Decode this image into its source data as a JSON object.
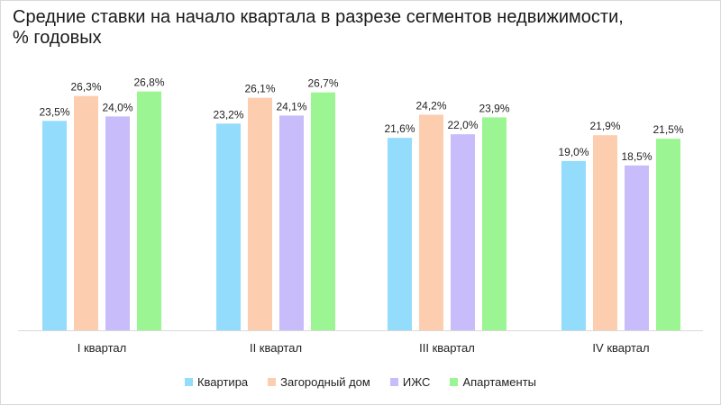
{
  "chart_data": {
    "type": "bar",
    "title": "Средние ставки на начало квартала в разрезе сегментов недвижимости,\n% годовых",
    "categories": [
      "I квартал",
      "II квартал",
      "III квартал",
      "IV квартал"
    ],
    "series": [
      {
        "name": "Квартира",
        "color": "#93dcfb",
        "values": [
          23.5,
          23.2,
          21.6,
          19.0
        ],
        "labels": [
          "23,5%",
          "23,2%",
          "21,6%",
          "19,0%"
        ]
      },
      {
        "name": "Загородный дом",
        "color": "#fdcdb0",
        "values": [
          26.3,
          26.1,
          24.2,
          21.9
        ],
        "labels": [
          "26,3%",
          "26,1%",
          "24,2%",
          "21,9%"
        ]
      },
      {
        "name": "ИЖС",
        "color": "#c8bcfa",
        "values": [
          24.0,
          24.1,
          22.0,
          18.5
        ],
        "labels": [
          "24,0%",
          "24,1%",
          "22,0%",
          "18,5%"
        ]
      },
      {
        "name": "Апартаменты",
        "color": "#9af592",
        "values": [
          26.8,
          26.7,
          23.9,
          21.5
        ],
        "labels": [
          "26,8%",
          "26,7%",
          "23,9%",
          "21,5%"
        ]
      }
    ],
    "ylim": [
      0,
      30
    ],
    "grid": false,
    "legend": "bottom"
  }
}
